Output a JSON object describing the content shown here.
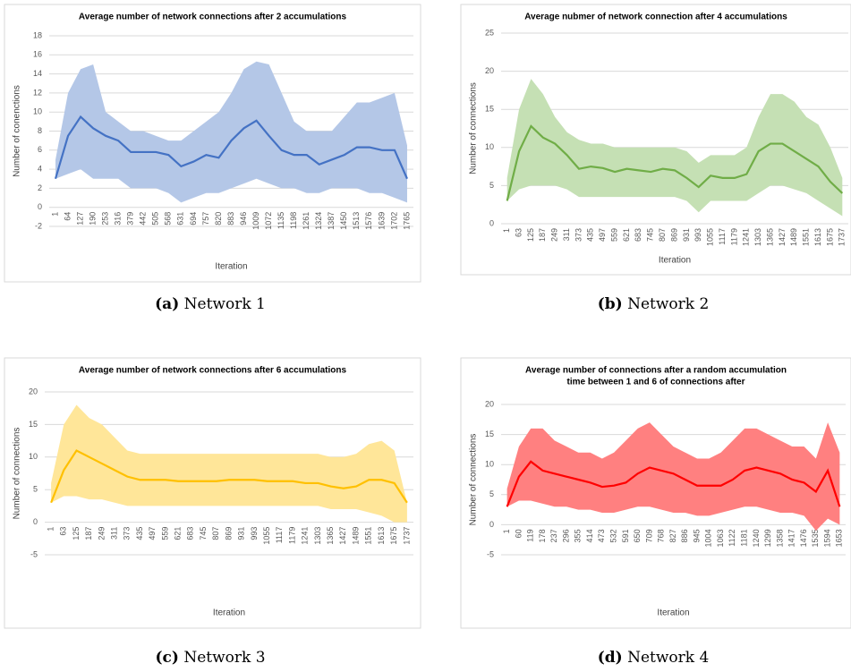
{
  "chart_data": [
    {
      "type": "line",
      "title": [
        "Average number of network connections after 2 accumulations"
      ],
      "caption": {
        "label": "(a)",
        "text": "Network 1"
      },
      "xlabel": "Iteration",
      "ylabel": "Number of conenctions",
      "categories": [
        "1",
        "64",
        "127",
        "190",
        "253",
        "316",
        "379",
        "442",
        "505",
        "568",
        "631",
        "694",
        "757",
        "820",
        "883",
        "946",
        "1009",
        "1072",
        "1135",
        "1198",
        "1261",
        "1324",
        "1387",
        "1450",
        "1513",
        "1576",
        "1639",
        "1702",
        "1765"
      ],
      "ylim": [
        -2,
        18
      ],
      "yticks": [
        -2,
        0,
        2,
        4,
        6,
        8,
        10,
        12,
        14,
        16,
        18
      ],
      "grid": true,
      "color": "#4472c4",
      "band_color": "#b4c7e7",
      "values": [
        3,
        7.5,
        9.5,
        8.3,
        7.5,
        7,
        5.8,
        5.8,
        5.8,
        5.5,
        4.3,
        4.8,
        5.5,
        5.2,
        7,
        8.3,
        9.1,
        7.5,
        6,
        5.5,
        5.5,
        4.5,
        5,
        5.5,
        6.3,
        6.3,
        6,
        6,
        3
      ],
      "upper": [
        5,
        12,
        14.5,
        15,
        10,
        9,
        8,
        8,
        7.5,
        7,
        7,
        8,
        9,
        10,
        12,
        14.5,
        15.3,
        15,
        12,
        9,
        8,
        8,
        8,
        9.5,
        11,
        11,
        11.5,
        12,
        6.5
      ],
      "lower": [
        3,
        3.5,
        4,
        3,
        3,
        3,
        2,
        2,
        2,
        1.5,
        0.5,
        1,
        1.5,
        1.5,
        2,
        2.5,
        3,
        2.5,
        2,
        2,
        1.5,
        1.5,
        2,
        2,
        2,
        1.5,
        1.5,
        1,
        0.5
      ]
    },
    {
      "type": "line",
      "title": [
        "Average nubmer of network connection after 4 accumulations"
      ],
      "caption": {
        "label": "(b)",
        "text": "Network 2"
      },
      "xlabel": "Iteration",
      "ylabel": "Number of connections",
      "categories": [
        "1",
        "63",
        "125",
        "187",
        "249",
        "311",
        "373",
        "435",
        "497",
        "559",
        "621",
        "683",
        "745",
        "807",
        "869",
        "931",
        "993",
        "1055",
        "1117",
        "1179",
        "1241",
        "1303",
        "1365",
        "1427",
        "1489",
        "1551",
        "1613",
        "1675",
        "1737"
      ],
      "ylim": [
        0,
        25
      ],
      "yticks": [
        0,
        5,
        10,
        15,
        20,
        25
      ],
      "grid": true,
      "color": "#70ad47",
      "band_color": "#c5e0b4",
      "values": [
        3,
        9.5,
        12.8,
        11.3,
        10.5,
        9,
        7.2,
        7.5,
        7.3,
        6.8,
        7.2,
        7,
        6.8,
        7.2,
        7,
        6,
        4.8,
        6.3,
        6,
        6,
        6.5,
        9.5,
        10.5,
        10.5,
        9.5,
        8.5,
        7.5,
        5.5,
        4
      ],
      "upper": [
        6,
        15,
        19,
        17,
        14,
        12,
        11,
        10.5,
        10.5,
        10,
        10,
        10,
        10,
        10,
        10,
        9.5,
        8,
        9,
        9,
        9,
        10,
        14,
        17,
        17,
        16,
        14,
        13,
        10,
        6
      ],
      "lower": [
        3,
        4.5,
        5,
        5,
        5,
        4.5,
        3.5,
        3.5,
        3.5,
        3.5,
        3.5,
        3.5,
        3.5,
        3.5,
        3.5,
        3,
        1.5,
        3,
        3,
        3,
        3,
        4,
        5,
        5,
        4.5,
        4,
        3,
        2,
        1
      ]
    },
    {
      "type": "line",
      "title": [
        "Average number of network connections after 6 accumulations"
      ],
      "caption": {
        "label": "(c)",
        "text": "Network 3"
      },
      "xlabel": "Iteration",
      "ylabel": "Number of connections",
      "categories": [
        "1",
        "63",
        "125",
        "187",
        "249",
        "311",
        "373",
        "435",
        "497",
        "559",
        "621",
        "683",
        "745",
        "807",
        "869",
        "931",
        "993",
        "1055",
        "1117",
        "1179",
        "1241",
        "1303",
        "1365",
        "1427",
        "1489",
        "1551",
        "1613",
        "1675",
        "1737"
      ],
      "ylim": [
        -5,
        20
      ],
      "yticks": [
        -5,
        0,
        5,
        10,
        15,
        20
      ],
      "grid": true,
      "color": "#ffc000",
      "band_color": "#ffe699",
      "values": [
        3,
        8,
        11,
        10,
        9,
        8,
        7,
        6.5,
        6.5,
        6.5,
        6.3,
        6.3,
        6.3,
        6.3,
        6.5,
        6.5,
        6.5,
        6.3,
        6.3,
        6.3,
        6,
        6,
        5.5,
        5.2,
        5.5,
        6.5,
        6.5,
        6,
        3
      ],
      "upper": [
        6,
        15,
        18,
        16,
        15,
        13,
        11,
        10.5,
        10.5,
        10.5,
        10.5,
        10.5,
        10.5,
        10.5,
        10.5,
        10.5,
        10.5,
        10.5,
        10.5,
        10.5,
        10.5,
        10.5,
        10,
        10,
        10.5,
        12,
        12.5,
        11,
        3
      ],
      "lower": [
        3,
        4,
        4,
        3.5,
        3.5,
        3,
        2.5,
        2.5,
        2.5,
        2.5,
        2.5,
        2.5,
        2.5,
        2.5,
        2.5,
        2.5,
        2.5,
        2.5,
        2.5,
        2.5,
        2.5,
        2.5,
        2,
        2,
        2,
        1.5,
        1,
        0,
        0
      ]
    },
    {
      "type": "line",
      "title": [
        "Average number of connections after a  random accumulation",
        "time between 1 and 6 of connections after"
      ],
      "caption": {
        "label": "(d)",
        "text": "Network 4"
      },
      "xlabel": "Iteration",
      "ylabel": "Number of connections",
      "categories": [
        "1",
        "60",
        "119",
        "178",
        "237",
        "296",
        "355",
        "414",
        "473",
        "532",
        "591",
        "650",
        "709",
        "768",
        "827",
        "886",
        "945",
        "1004",
        "1063",
        "1122",
        "1181",
        "1240",
        "1299",
        "1358",
        "1417",
        "1476",
        "1535",
        "1594",
        "1653"
      ],
      "ylim": [
        -5,
        20
      ],
      "yticks": [
        -5,
        0,
        5,
        10,
        15,
        20
      ],
      "grid": true,
      "color": "#ff0000",
      "band_color": "#ff8080",
      "values": [
        3,
        8,
        10.5,
        9,
        8.5,
        8,
        7.5,
        7,
        6.3,
        6.5,
        7,
        8.5,
        9.5,
        9,
        8.5,
        7.5,
        6.5,
        6.5,
        6.5,
        7.5,
        9,
        9.5,
        9,
        8.5,
        7.5,
        7,
        5.5,
        9,
        3
      ],
      "upper": [
        6,
        13,
        16,
        16,
        14,
        13,
        12,
        12,
        11,
        12,
        14,
        16,
        17,
        15,
        13,
        12,
        11,
        11,
        12,
        14,
        16,
        16,
        15,
        14,
        13,
        13,
        11,
        17,
        12
      ],
      "lower": [
        3,
        4,
        4,
        3.5,
        3,
        3,
        2.5,
        2.5,
        2,
        2,
        2.5,
        3,
        3,
        2.5,
        2,
        2,
        1.5,
        1.5,
        2,
        2.5,
        3,
        3,
        2.5,
        2,
        2,
        1.5,
        -1,
        1,
        0
      ]
    }
  ]
}
